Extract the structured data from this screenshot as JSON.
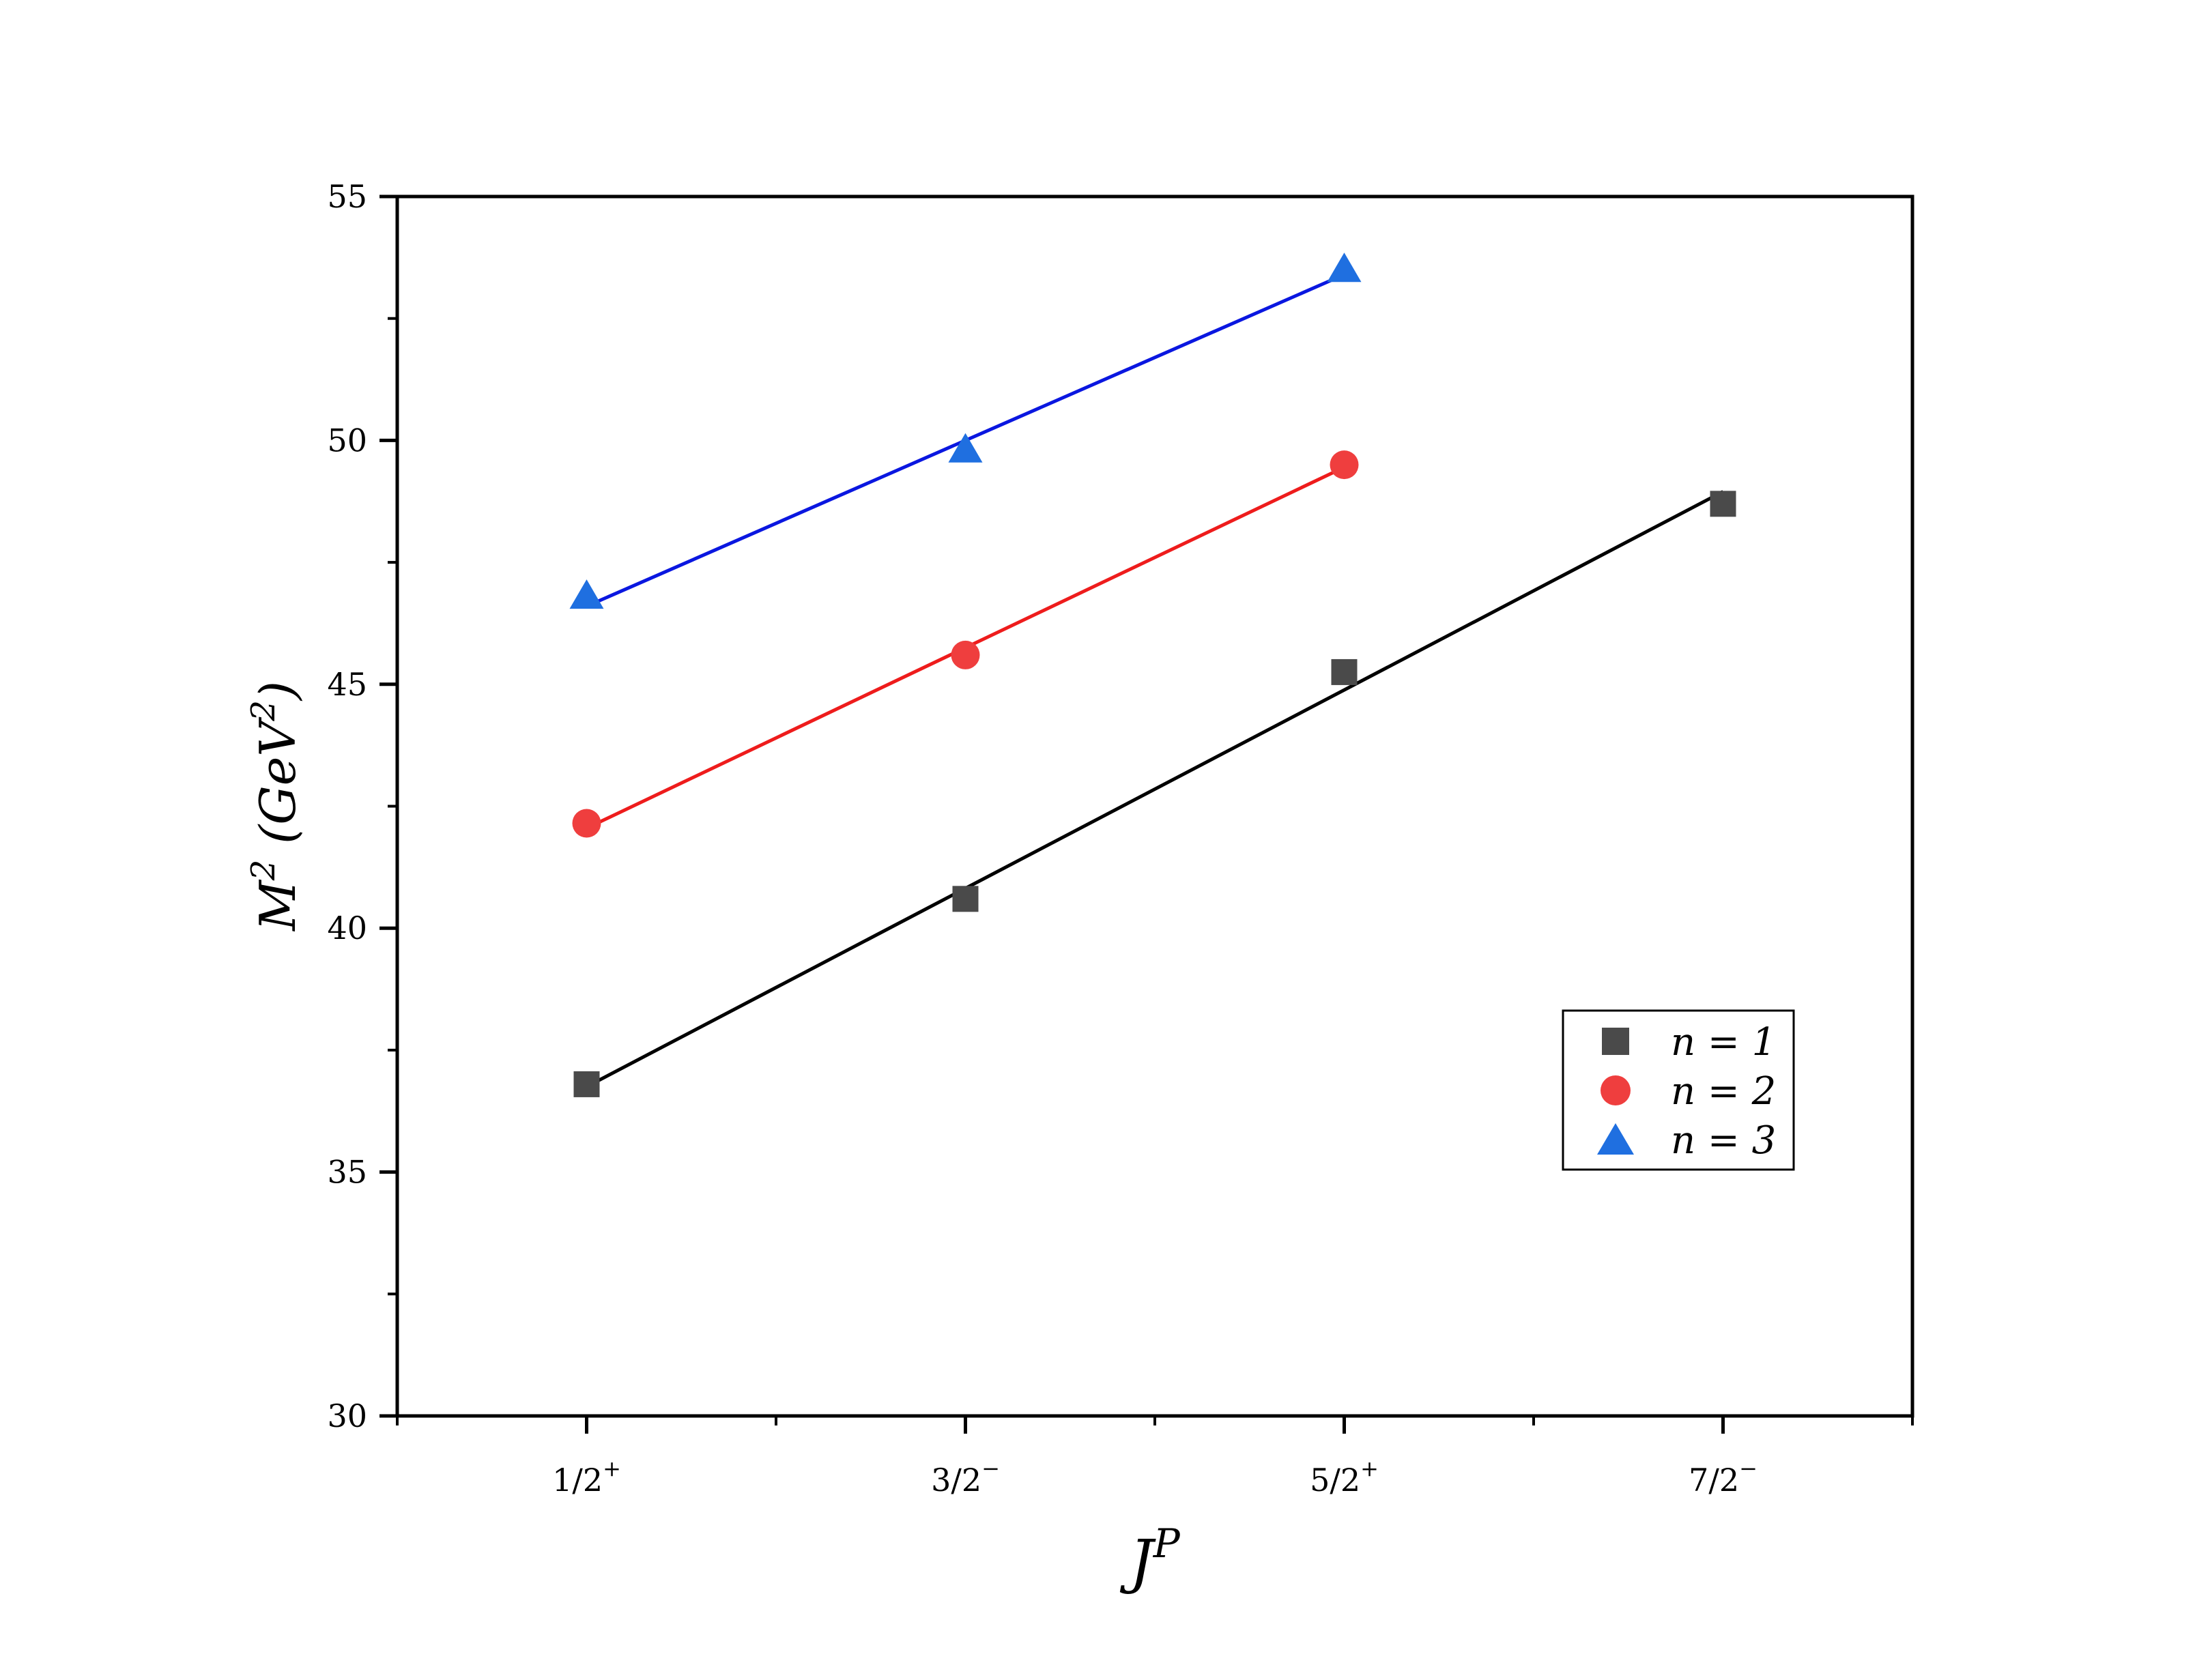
{
  "chart_data": {
    "type": "scatter",
    "title": "",
    "xlabel": "J",
    "xlabel_sup": "P",
    "ylabel": "M",
    "ylabel_sup": "2",
    "ylabel_unit_open": " (GeV",
    "ylabel_unit_sup": "2",
    "ylabel_unit_close": ")",
    "x_tick_labels": [
      {
        "x": 1,
        "base": "1/2",
        "sup": "+"
      },
      {
        "x": 2,
        "base": "3/2",
        "sup": "−"
      },
      {
        "x": 3,
        "base": "5/2",
        "sup": "+"
      },
      {
        "x": 4,
        "base": "7/2",
        "sup": "−"
      }
    ],
    "xlim": [
      0.5,
      4.5
    ],
    "ylim": [
      30,
      55
    ],
    "y_major_ticks": [
      30,
      35,
      40,
      45,
      50,
      55
    ],
    "y_tick_labels": [
      "30",
      "35",
      "40",
      "45",
      "50",
      "55"
    ],
    "y_minor_ticks": [
      32.5,
      37.5,
      42.5,
      47.5,
      52.5
    ],
    "x_minor_ticks": [
      0.5,
      1.5,
      2.5,
      3.5,
      4.5
    ],
    "grid": false,
    "legend_position": "lower-right",
    "series": [
      {
        "name": "n = 1",
        "marker": "square",
        "color": "#4a4a4a",
        "line_color": "#000000",
        "x": [
          1,
          2,
          3,
          4
        ],
        "y": [
          36.8,
          40.6,
          45.25,
          48.7
        ],
        "fit": {
          "x": [
            1,
            4
          ],
          "y": [
            36.75,
            48.95
          ]
        }
      },
      {
        "name": "n = 2",
        "marker": "circle",
        "color": "#ef3e3e",
        "line_color": "#ee1c1c",
        "x": [
          1,
          2,
          3
        ],
        "y": [
          42.15,
          45.6,
          49.5
        ],
        "fit": {
          "x": [
            1,
            3
          ],
          "y": [
            42.05,
            49.45
          ]
        }
      },
      {
        "name": "n = 3",
        "marker": "triangle",
        "color": "#1f6fe0",
        "line_color": "#0a17e0",
        "x": [
          1,
          2,
          3
        ],
        "y": [
          46.8,
          49.8,
          53.5
        ],
        "fit": {
          "x": [
            1,
            3
          ],
          "y": [
            46.6,
            53.4
          ]
        }
      }
    ]
  }
}
